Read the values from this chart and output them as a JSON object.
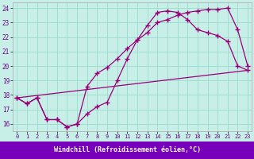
{
  "xlabel": "Windchill (Refroidissement éolien,°C)",
  "bg_color": "#c8eee8",
  "grid_color": "#99ddcc",
  "line_color": "#990077",
  "xlim": [
    -0.4,
    23.4
  ],
  "ylim": [
    15.5,
    24.4
  ],
  "xticks": [
    0,
    1,
    2,
    3,
    4,
    5,
    6,
    7,
    8,
    9,
    10,
    11,
    12,
    13,
    14,
    15,
    16,
    17,
    18,
    19,
    20,
    21,
    22,
    23
  ],
  "yticks": [
    16,
    17,
    18,
    19,
    20,
    21,
    22,
    23,
    24
  ],
  "curve1_x": [
    0,
    1,
    2,
    3,
    4,
    5,
    6,
    7,
    8,
    9,
    10,
    11,
    12,
    13,
    14,
    15,
    16,
    17,
    18,
    19,
    20,
    21,
    22,
    23
  ],
  "curve1_y": [
    17.8,
    17.4,
    17.8,
    16.3,
    16.3,
    15.8,
    16.0,
    16.7,
    17.2,
    17.5,
    19.0,
    20.5,
    21.8,
    22.8,
    23.7,
    23.8,
    23.7,
    23.2,
    22.5,
    22.3,
    22.1,
    21.7,
    20.0,
    19.7
  ],
  "curve2_x": [
    0,
    1,
    2,
    3,
    4,
    5,
    6,
    7,
    8,
    9,
    10,
    11,
    12,
    13,
    14,
    15,
    16,
    17,
    18,
    19,
    20,
    21,
    22,
    23
  ],
  "curve2_y": [
    17.8,
    17.4,
    17.8,
    16.3,
    16.3,
    15.8,
    16.0,
    18.6,
    19.5,
    19.9,
    20.5,
    21.2,
    21.8,
    22.3,
    23.0,
    23.2,
    23.5,
    23.7,
    23.8,
    23.9,
    23.9,
    24.0,
    22.5,
    20.0
  ],
  "line3_x": [
    0,
    23
  ],
  "line3_y": [
    17.8,
    19.7
  ],
  "xlabel_bg": "#7700bb",
  "xlabel_color": "white",
  "xlabel_fontsize": 6.0,
  "tick_fontsize": 5.0,
  "marker_style": "+"
}
